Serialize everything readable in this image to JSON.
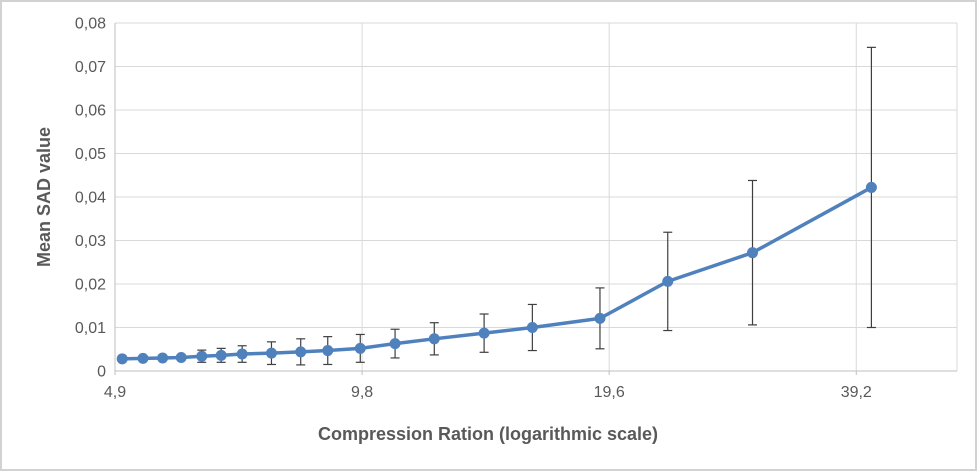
{
  "window": {
    "background": "#ffffff",
    "frame_border_color": "#d2d2d2"
  },
  "styles": {
    "text_color": "#595959",
    "gridline_color": "#d9d9d9",
    "axis_line_color": "#bfbfbf",
    "error_bar_color": "#3f3f3f",
    "series_color": "#4F81BD"
  },
  "chart_data": {
    "type": "line",
    "title": "",
    "xlabel": "Compression Ration (logarithmic scale)",
    "ylabel": "Mean SAD value",
    "x_scale": "log2",
    "xlim": [
      4.9,
      52.0
    ],
    "ylim": [
      0,
      0.08
    ],
    "grid": true,
    "legend": "none",
    "decimal_separator": ",",
    "x_ticks": [
      {
        "value": 4.9,
        "label": "4,9"
      },
      {
        "value": 9.8,
        "label": "9,8"
      },
      {
        "value": 19.6,
        "label": "19,6"
      },
      {
        "value": 39.2,
        "label": "39,2"
      }
    ],
    "y_ticks": [
      {
        "value": 0,
        "label": "0"
      },
      {
        "value": 0.01,
        "label": "0,01"
      },
      {
        "value": 0.02,
        "label": "0,02"
      },
      {
        "value": 0.03,
        "label": "0,03"
      },
      {
        "value": 0.04,
        "label": "0,04"
      },
      {
        "value": 0.05,
        "label": "0,05"
      },
      {
        "value": 0.06,
        "label": "0,06"
      },
      {
        "value": 0.07,
        "label": "0,07"
      },
      {
        "value": 0.08,
        "label": "0,08"
      }
    ],
    "series": [
      {
        "name": "Mean SAD value",
        "color": "#4F81BD",
        "marker": "circle",
        "error_bars": true,
        "points": [
          {
            "x": 5.0,
            "y": 0.0028,
            "err": 0.0003
          },
          {
            "x": 5.3,
            "y": 0.0029,
            "err": 0.0003
          },
          {
            "x": 5.6,
            "y": 0.003,
            "err": 0.0004
          },
          {
            "x": 5.9,
            "y": 0.0031,
            "err": 0.0005
          },
          {
            "x": 6.25,
            "y": 0.0034,
            "err": 0.0014
          },
          {
            "x": 6.6,
            "y": 0.0036,
            "err": 0.0016
          },
          {
            "x": 7.0,
            "y": 0.0039,
            "err": 0.0019
          },
          {
            "x": 7.6,
            "y": 0.0041,
            "err": 0.0026
          },
          {
            "x": 8.25,
            "y": 0.0044,
            "err": 0.003
          },
          {
            "x": 8.9,
            "y": 0.0047,
            "err": 0.0032
          },
          {
            "x": 9.75,
            "y": 0.0052,
            "err": 0.0032
          },
          {
            "x": 10.75,
            "y": 0.0063,
            "err": 0.0033
          },
          {
            "x": 12.0,
            "y": 0.0074,
            "err": 0.0037
          },
          {
            "x": 13.8,
            "y": 0.0087,
            "err": 0.0044
          },
          {
            "x": 15.8,
            "y": 0.01,
            "err": 0.0053
          },
          {
            "x": 19.1,
            "y": 0.0121,
            "err": 0.007
          },
          {
            "x": 23.1,
            "y": 0.0206,
            "err": 0.0113
          },
          {
            "x": 29.3,
            "y": 0.0272,
            "err": 0.0166
          },
          {
            "x": 40.9,
            "y": 0.0422,
            "err": 0.0322
          }
        ]
      }
    ]
  }
}
